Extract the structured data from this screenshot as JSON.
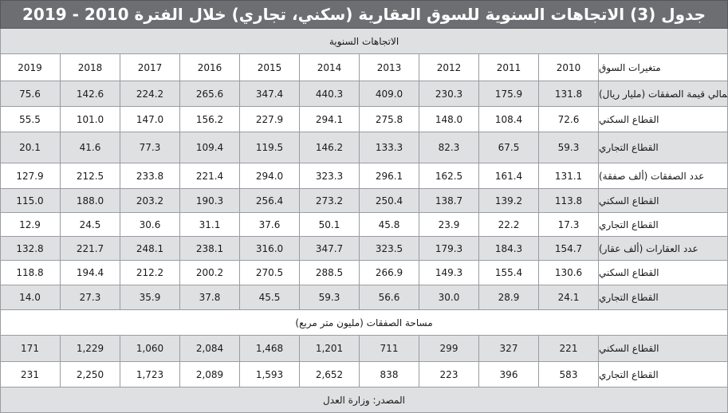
{
  "title": "جدول (3) الاتجاهات السنوية للسوق العقارية (سكني، تجاري) خلال الفترة 2010 - 2019",
  "subheader": "الاتجاهات السنوية",
  "header": {
    "label": "متغيرات السوق",
    "years": [
      "2010",
      "2011",
      "2012",
      "2013",
      "2014",
      "2015",
      "2016",
      "2017",
      "2018",
      "2019"
    ]
  },
  "rows": [
    {
      "label": "إجمالي قيمة الصفقات (مليار ريال)",
      "values": [
        "131.8",
        "175.9",
        "230.3",
        "409.0",
        "440.3",
        "347.4",
        "265.6",
        "224.2",
        "142.6",
        "75.6"
      ]
    },
    {
      "label": "القطاع السكني",
      "values": [
        "72.6",
        "108.4",
        "148.0",
        "275.8",
        "294.1",
        "227.9",
        "156.2",
        "147.0",
        "101.0",
        "55.5"
      ]
    },
    {
      "label": "القطاع التجاري",
      "values": [
        "59.3",
        "67.5",
        "82.3",
        "133.3",
        "146.2",
        "119.5",
        "109.4",
        "77.3",
        "41.6",
        "20.1"
      ]
    },
    {
      "label": "عدد الصفقات (ألف صفقة)",
      "values": [
        "131.1",
        "161.4",
        "162.5",
        "296.1",
        "323.3",
        "294.0",
        "221.4",
        "233.8",
        "212.5",
        "127.9"
      ]
    },
    {
      "label": "القطاع السكني",
      "values": [
        "113.8",
        "139.2",
        "138.7",
        "250.4",
        "273.2",
        "256.4",
        "190.3",
        "203.2",
        "188.0",
        "115.0"
      ]
    },
    {
      "label": "القطاع التجاري",
      "values": [
        "17.3",
        "22.2",
        "23.9",
        "45.8",
        "50.1",
        "37.6",
        "31.1",
        "30.6",
        "24.5",
        "12.9"
      ]
    },
    {
      "label": "عدد العقارات (ألف عقار)",
      "values": [
        "154.7",
        "184.3",
        "179.3",
        "323.5",
        "347.7",
        "316.0",
        "238.1",
        "248.1",
        "221.7",
        "132.8"
      ]
    },
    {
      "label": "القطاع السكني",
      "values": [
        "130.6",
        "155.4",
        "149.3",
        "266.9",
        "288.5",
        "270.5",
        "200.2",
        "212.2",
        "194.4",
        "118.8"
      ]
    },
    {
      "label": "القطاع التجاري",
      "values": [
        "24.1",
        "28.9",
        "30.0",
        "56.6",
        "59.3",
        "45.5",
        "37.8",
        "35.9",
        "27.3",
        "14.0"
      ]
    }
  ],
  "area_header": "مساحة الصفقات (مليون متر مربع)",
  "area_rows": [
    {
      "label": "القطاع السكني",
      "values": [
        "221",
        "327",
        "299",
        "711",
        "1,201",
        "1,468",
        "2,084",
        "1,060",
        "1,229",
        "171"
      ]
    },
    {
      "label": "القطاع التجاري",
      "values": [
        "583",
        "396",
        "223",
        "838",
        "2,652",
        "1,593",
        "2,089",
        "1,723",
        "2,250",
        "231"
      ]
    }
  ],
  "source": "المصدر: وزارة العدل"
}
